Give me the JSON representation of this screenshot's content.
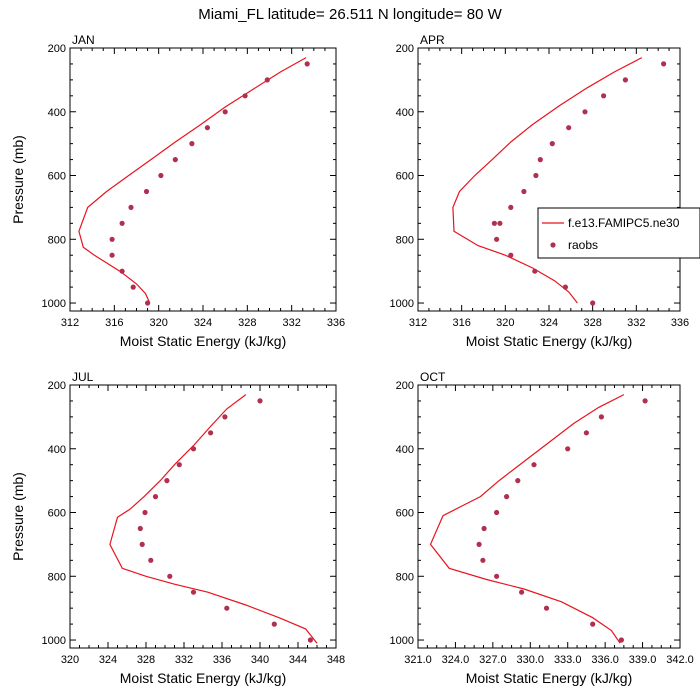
{
  "title": "Miami_FL  latitude= 26.511 N longitude= 80 W",
  "colors": {
    "model": "#e8141e",
    "obs": "#b03050"
  },
  "legend": {
    "entries": [
      "f.e13.FAMIPC5.ne30",
      "raobs"
    ],
    "placement": "right"
  },
  "chart_data": [
    {
      "type": "line",
      "panel_label": "JAN",
      "xlabel": "Moist Static Energy (kJ/kg)",
      "ylabel": "Pressure (mb)",
      "xlim": [
        312,
        336
      ],
      "ylim": [
        200,
        1025
      ],
      "y_inverted": true,
      "xticks": [
        312,
        316,
        320,
        324,
        328,
        332,
        336
      ],
      "xtick_labels": [
        "312",
        "316",
        "320",
        "324",
        "328",
        "332",
        "336"
      ],
      "yticks": [
        200,
        400,
        600,
        800,
        1000
      ],
      "ytick_labels": [
        "200",
        "400",
        "600",
        "800",
        "1000"
      ],
      "series": [
        {
          "name": "f.e13.FAMIPC5.ne30",
          "kind": "line",
          "x": [
            333.3,
            331.0,
            328.5,
            326.0,
            323.8,
            321.5,
            319.3,
            317.3,
            315.3,
            313.6,
            312.8,
            313.2,
            314.2,
            316.5,
            318.0,
            318.8,
            319.2
          ],
          "y": [
            230,
            275,
            330,
            385,
            440,
            495,
            550,
            600,
            650,
            700,
            775,
            825,
            850,
            900,
            940,
            970,
            1000
          ]
        },
        {
          "name": "raobs",
          "kind": "scatter",
          "x": [
            333.4,
            329.8,
            327.8,
            326.0,
            324.4,
            323.0,
            321.5,
            320.2,
            318.9,
            317.5,
            316.7,
            315.8,
            315.8,
            316.7,
            317.7,
            319.0
          ],
          "y": [
            250,
            300,
            350,
            400,
            450,
            500,
            550,
            600,
            650,
            700,
            750,
            800,
            850,
            900,
            950,
            1000
          ]
        }
      ]
    },
    {
      "type": "line",
      "panel_label": "APR",
      "xlabel": "Moist Static Energy (kJ/kg)",
      "ylabel": "",
      "xlim": [
        312,
        336
      ],
      "ylim": [
        200,
        1025
      ],
      "y_inverted": true,
      "xticks": [
        312,
        316,
        320,
        324,
        328,
        332,
        336
      ],
      "xtick_labels": [
        "312",
        "316",
        "320",
        "324",
        "328",
        "332",
        "336"
      ],
      "yticks": [
        200,
        400,
        600,
        800,
        1000
      ],
      "ytick_labels": [
        "200",
        "400",
        "600",
        "800",
        "1000"
      ],
      "series": [
        {
          "name": "f.e13.FAMIPC5.ne30",
          "kind": "line",
          "x": [
            332.5,
            330.0,
            327.5,
            325.0,
            322.5,
            320.5,
            318.8,
            317.2,
            315.8,
            315.2,
            315.3,
            317.5,
            320.0,
            322.5,
            324.5,
            325.8,
            326.6
          ],
          "y": [
            230,
            275,
            325,
            380,
            440,
            495,
            550,
            600,
            650,
            700,
            775,
            820,
            850,
            890,
            930,
            965,
            1000
          ]
        },
        {
          "name": "raobs",
          "kind": "scatter",
          "x": [
            334.5,
            331.0,
            329.0,
            327.3,
            325.8,
            324.3,
            323.2,
            322.8,
            321.7,
            320.5,
            319.5,
            319.0,
            319.2,
            320.5,
            322.7,
            325.5,
            328.0
          ],
          "y": [
            250,
            300,
            350,
            400,
            450,
            500,
            550,
            600,
            650,
            700,
            750,
            750,
            800,
            850,
            900,
            950,
            1000
          ]
        }
      ]
    },
    {
      "type": "line",
      "panel_label": "JUL",
      "xlabel": "Moist Static Energy (kJ/kg)",
      "ylabel": "Pressure (mb)",
      "xlim": [
        320,
        348
      ],
      "ylim": [
        200,
        1025
      ],
      "y_inverted": true,
      "xticks": [
        320,
        324,
        328,
        332,
        336,
        340,
        344,
        348
      ],
      "xtick_labels": [
        "320",
        "324",
        "328",
        "332",
        "336",
        "340",
        "344",
        "348"
      ],
      "yticks": [
        200,
        400,
        600,
        800,
        1000
      ],
      "ytick_labels": [
        "200",
        "400",
        "600",
        "800",
        "1000"
      ],
      "series": [
        {
          "name": "f.e13.FAMIPC5.ne30",
          "kind": "line",
          "x": [
            338.5,
            336.5,
            334.8,
            333.0,
            331.0,
            329.5,
            327.8,
            326.3,
            325.0,
            324.2,
            325.5,
            328.0,
            331.0,
            334.5,
            338.5,
            342.0,
            344.8,
            346.0
          ],
          "y": [
            230,
            275,
            330,
            390,
            450,
            500,
            550,
            590,
            615,
            700,
            775,
            800,
            825,
            850,
            890,
            930,
            965,
            1010
          ]
        },
        {
          "name": "raobs",
          "kind": "scatter",
          "x": [
            340.0,
            336.3,
            334.8,
            333.0,
            331.5,
            330.2,
            329.0,
            327.9,
            327.4,
            327.6,
            328.5,
            330.5,
            333.0,
            336.5,
            341.5,
            345.3
          ],
          "y": [
            250,
            300,
            350,
            400,
            450,
            500,
            550,
            600,
            650,
            700,
            750,
            800,
            850,
            900,
            950,
            1000
          ]
        }
      ]
    },
    {
      "type": "line",
      "panel_label": "OCT",
      "xlabel": "Moist Static Energy (kJ/kg)",
      "ylabel": "",
      "xlim": [
        321.0,
        342.0
      ],
      "ylim": [
        200,
        1025
      ],
      "y_inverted": true,
      "xticks": [
        321.0,
        324.0,
        327.0,
        330.0,
        333.0,
        336.0,
        339.0,
        342.0
      ],
      "xtick_labels": [
        "321.0",
        "324.0",
        "327.0",
        "330.0",
        "333.0",
        "336.0",
        "339.0",
        "342.0"
      ],
      "yticks": [
        200,
        400,
        600,
        800,
        1000
      ],
      "ytick_labels": [
        "200",
        "400",
        "600",
        "800",
        "1000"
      ],
      "series": [
        {
          "name": "f.e13.FAMIPC5.ne30",
          "kind": "line",
          "x": [
            337.5,
            335.5,
            333.5,
            331.5,
            329.5,
            327.5,
            326.0,
            324.5,
            323.0,
            322.0,
            323.5,
            326.5,
            329.5,
            332.5,
            335.0,
            336.5,
            337.2
          ],
          "y": [
            230,
            270,
            320,
            380,
            440,
            500,
            550,
            580,
            610,
            700,
            775,
            810,
            840,
            880,
            930,
            970,
            1010
          ]
        },
        {
          "name": "raobs",
          "kind": "scatter",
          "x": [
            339.2,
            335.7,
            334.5,
            333.0,
            330.3,
            329.0,
            328.1,
            327.3,
            326.3,
            325.9,
            326.2,
            327.3,
            329.3,
            331.3,
            335.0,
            337.3
          ],
          "y": [
            250,
            300,
            350,
            400,
            450,
            500,
            550,
            600,
            650,
            700,
            750,
            800,
            850,
            900,
            950,
            1000
          ]
        }
      ]
    }
  ]
}
